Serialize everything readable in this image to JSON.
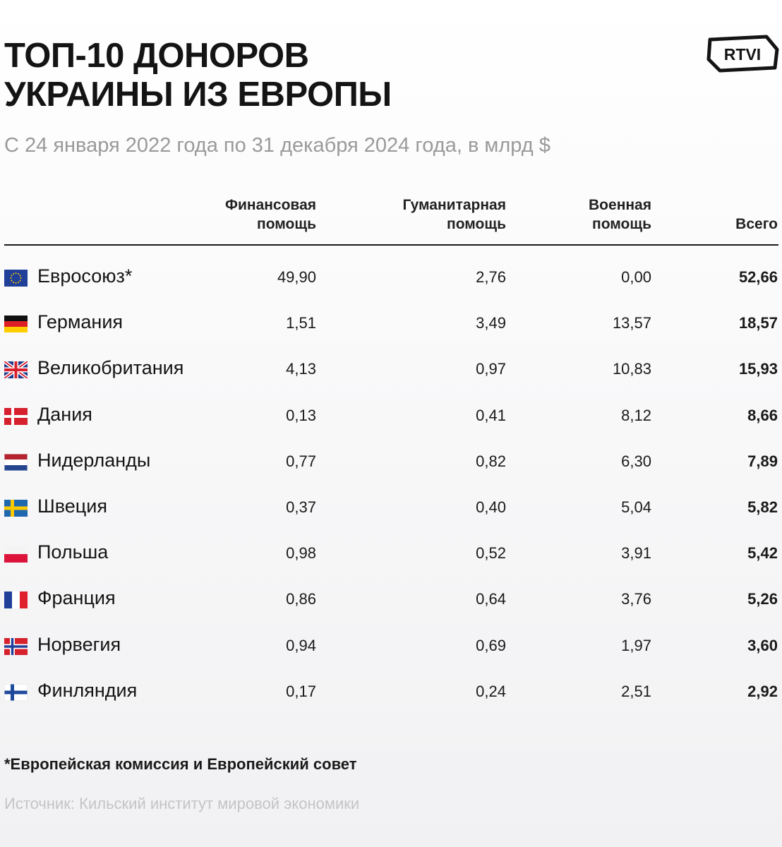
{
  "header": {
    "title_line1": "ТОП-10 ДОНОРОВ",
    "title_line2": "УКРАИНЫ ИЗ ЕВРОПЫ",
    "subtitle": "С 24 января 2022 года по 31 декабря 2024 года, в млрд $",
    "logo_text": "RTVI"
  },
  "columns": [
    {
      "line1": "Финансовая",
      "line2": "помощь"
    },
    {
      "line1": "Гуманитарная",
      "line2": "помощь"
    },
    {
      "line1": "Военная",
      "line2": "помощь"
    },
    {
      "line1": "",
      "line2": "Всего"
    }
  ],
  "rows": [
    {
      "country": "Евросоюз*",
      "flag": "eu-flag-icon",
      "financial": "49,90",
      "humanitarian": "2,76",
      "military": "0,00",
      "total": "52,66"
    },
    {
      "country": "Германия",
      "flag": "germany-flag-icon",
      "financial": "1,51",
      "humanitarian": "3,49",
      "military": "13,57",
      "total": "18,57"
    },
    {
      "country": "Великобритания",
      "flag": "uk-flag-icon",
      "financial": "4,13",
      "humanitarian": "0,97",
      "military": "10,83",
      "total": "15,93"
    },
    {
      "country": "Дания",
      "flag": "denmark-flag-icon",
      "financial": "0,13",
      "humanitarian": "0,41",
      "military": "8,12",
      "total": "8,66"
    },
    {
      "country": "Нидерланды",
      "flag": "netherlands-flag-icon",
      "financial": "0,77",
      "humanitarian": "0,82",
      "military": "6,30",
      "total": "7,89"
    },
    {
      "country": "Швеция",
      "flag": "sweden-flag-icon",
      "financial": "0,37",
      "humanitarian": "0,40",
      "military": "5,04",
      "total": "5,82"
    },
    {
      "country": "Польша",
      "flag": "poland-flag-icon",
      "financial": "0,98",
      "humanitarian": "0,52",
      "military": "3,91",
      "total": "5,42"
    },
    {
      "country": "Франция",
      "flag": "france-flag-icon",
      "financial": "0,86",
      "humanitarian": "0,64",
      "military": "3,76",
      "total": "5,26"
    },
    {
      "country": "Норвегия",
      "flag": "norway-flag-icon",
      "financial": "0,94",
      "humanitarian": "0,69",
      "military": "1,97",
      "total": "3,60"
    },
    {
      "country": "Финляндия",
      "flag": "finland-flag-icon",
      "financial": "0,17",
      "humanitarian": "0,24",
      "military": "2,51",
      "total": "2,92"
    }
  ],
  "footnote": "*Европейская комиссия и Европейский совет",
  "source": "Источник: Кильский институт мировой экономики",
  "colors": {
    "text": "#141414",
    "subtitle": "#9a9a9a",
    "source": "#c4c4c6",
    "background_top": "#ffffff",
    "background_bottom": "#f1f1f3"
  },
  "chart_data": {
    "type": "table",
    "title": "ТОП-10 ДОНОРОВ УКРАИНЫ ИЗ ЕВРОПЫ",
    "subtitle": "С 24 января 2022 года по 31 декабря 2024 года, в млрд $",
    "columns": [
      "Финансовая помощь",
      "Гуманитарная помощь",
      "Военная помощь",
      "Всего"
    ],
    "categories": [
      "Евросоюз*",
      "Германия",
      "Великобритания",
      "Дания",
      "Нидерланды",
      "Швеция",
      "Польша",
      "Франция",
      "Норвегия",
      "Финляндия"
    ],
    "series": [
      {
        "name": "Финансовая помощь",
        "values": [
          49.9,
          1.51,
          4.13,
          0.13,
          0.77,
          0.37,
          0.98,
          0.86,
          0.94,
          0.17
        ]
      },
      {
        "name": "Гуманитарная помощь",
        "values": [
          2.76,
          3.49,
          0.97,
          0.41,
          0.82,
          0.4,
          0.52,
          0.64,
          0.69,
          0.24
        ]
      },
      {
        "name": "Военная помощь",
        "values": [
          0.0,
          13.57,
          10.83,
          8.12,
          6.3,
          5.04,
          3.91,
          3.76,
          1.97,
          2.51
        ]
      },
      {
        "name": "Всего",
        "values": [
          52.66,
          18.57,
          15.93,
          8.66,
          7.89,
          5.82,
          5.42,
          5.26,
          3.6,
          2.92
        ]
      }
    ]
  }
}
